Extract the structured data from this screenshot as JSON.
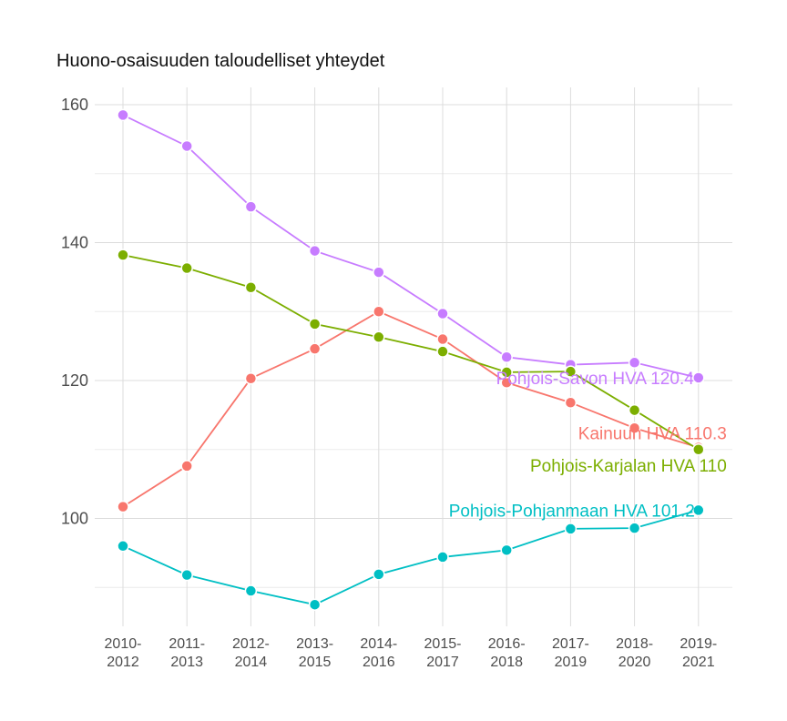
{
  "chart_data": {
    "type": "line",
    "title": "Huono-osaisuuden taloudelliset yhteydet",
    "xlabel": "",
    "ylabel": "",
    "categories": [
      [
        "2010-",
        "2012"
      ],
      [
        "2011-",
        "2013"
      ],
      [
        "2012-",
        "2014"
      ],
      [
        "2013-",
        "2015"
      ],
      [
        "2014-",
        "2016"
      ],
      [
        "2015-",
        "2017"
      ],
      [
        "2016-",
        "2018"
      ],
      [
        "2017-",
        "2019"
      ],
      [
        "2018-",
        "2020"
      ],
      [
        "2019-",
        "2021"
      ]
    ],
    "y_ticks": [
      "100",
      "120",
      "140",
      "160"
    ],
    "ylim": [
      85,
      165
    ],
    "grid": true,
    "legend": "none",
    "series": [
      {
        "name": "Pohjois-Savon HVA",
        "label": "Pohjois-Savon HVA 120.4",
        "color": "#C77CFF",
        "values": [
          158.5,
          154.0,
          145.2,
          138.8,
          135.7,
          129.7,
          123.4,
          122.3,
          122.6,
          120.4
        ]
      },
      {
        "name": "Kainuun HVA",
        "label": "Kainuun HVA 110.3",
        "color": "#F8766D",
        "values": [
          101.7,
          107.6,
          120.3,
          124.6,
          130.0,
          126.0,
          119.7,
          116.8,
          113.1,
          110.3
        ]
      },
      {
        "name": "Pohjois-Karjalan HVA",
        "label": "Pohjois-Karjalan HVA 110",
        "color": "#7CAE00",
        "values": [
          138.2,
          136.3,
          133.5,
          128.2,
          126.3,
          124.2,
          121.2,
          121.3,
          115.7,
          110.0
        ]
      },
      {
        "name": "Pohjois-Pohjanmaan HVA",
        "label": "Pohjois-Pohjanmaan HVA 101.2",
        "color": "#00BFC4",
        "values": [
          96.0,
          91.8,
          89.5,
          87.5,
          91.9,
          94.4,
          95.4,
          98.5,
          98.6,
          101.2
        ]
      }
    ]
  }
}
